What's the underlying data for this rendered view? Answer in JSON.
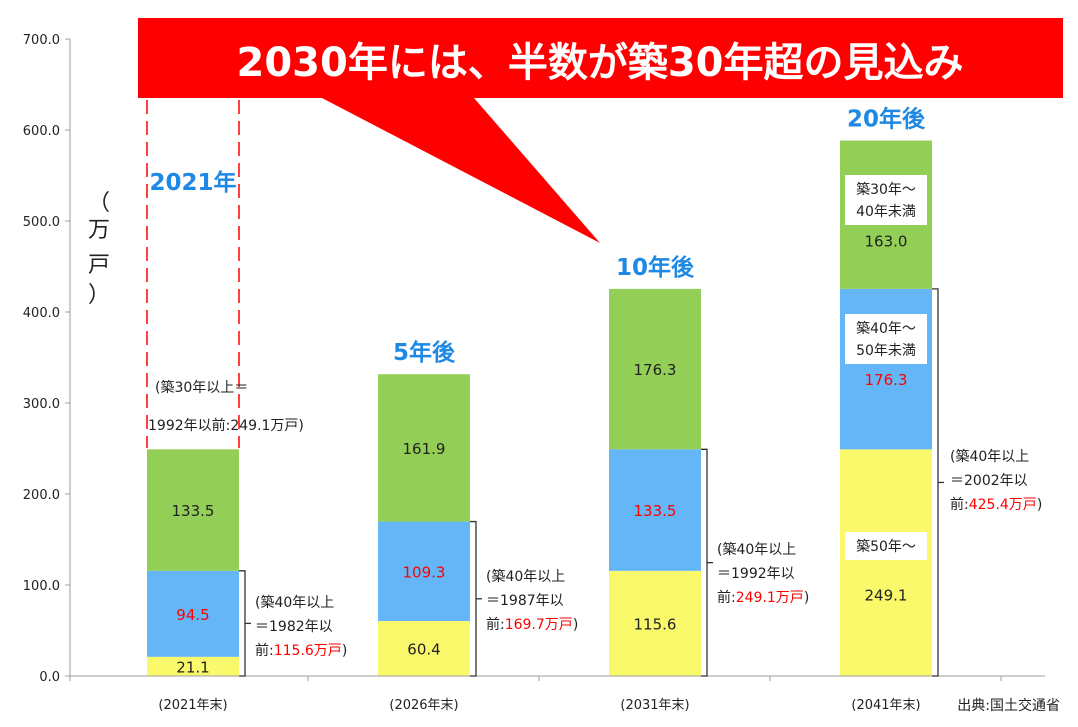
{
  "banner": "2030年には、半数が築30年超の見込み",
  "unit_label": [
    "（",
    "万",
    "戸",
    "）"
  ],
  "source": "出典:国土交通省",
  "chart_data": {
    "type": "bar",
    "stacked": true,
    "categories": [
      "(2021年末)",
      "(2026年末)",
      "(2031年末)",
      "(2041年末)"
    ],
    "ylim": [
      0,
      700
    ],
    "yticks": [
      "0.0",
      "100.0",
      "200.0",
      "300.0",
      "400.0",
      "500.0",
      "600.0",
      "700.0"
    ],
    "ylabel": "（万戸）",
    "grid": false,
    "colors": {
      "yellow": "#faf96b",
      "blue": "#64b6f7",
      "green": "#93cf56",
      "red": "#ff0000",
      "label_blue": "#1e88e5",
      "bracket": "#333333"
    },
    "series": [
      {
        "values": [
          21.1,
          60.4,
          115.6,
          249.1
        ],
        "labels": [
          "21.1",
          "60.4",
          "115.6",
          "249.1"
        ]
      },
      {
        "values": [
          94.5,
          109.3,
          133.5,
          176.3
        ],
        "labels": [
          "94.5",
          "109.3",
          "133.5",
          "176.3"
        ]
      },
      {
        "values": [
          133.5,
          161.9,
          176.3,
          163.0
        ],
        "labels": [
          "133.5",
          "161.9",
          "176.3",
          "163.0"
        ]
      }
    ],
    "top_labels": [
      "2021年",
      "5年後",
      "10年後",
      "20年後"
    ],
    "annotations": [
      {
        "lines": [
          [
            "(築40年以上"
          ],
          [
            "＝1982年以"
          ],
          [
            "前:",
            "115.6万戸",
            ")"
          ]
        ]
      },
      {
        "lines": [
          [
            "(築40年以上"
          ],
          [
            "＝1987年以"
          ],
          [
            "前:",
            "169.7万戸",
            ")"
          ]
        ]
      },
      {
        "lines": [
          [
            "(築40年以上"
          ],
          [
            "＝1992年以"
          ],
          [
            "前:",
            "249.1万戸",
            ")"
          ]
        ]
      },
      {
        "lines": [
          [
            "(築40年以上"
          ],
          [
            "＝2002年以"
          ],
          [
            "前:",
            "425.4万戸",
            ")"
          ]
        ]
      }
    ],
    "note_2021": [
      "(築30年以上＝",
      "1992年以前:249.1万戸)"
    ],
    "box_labels": [
      [
        "築30年～",
        "40年未満"
      ],
      [
        "築40年～",
        "50年未満"
      ],
      [
        "築50年～"
      ]
    ]
  }
}
